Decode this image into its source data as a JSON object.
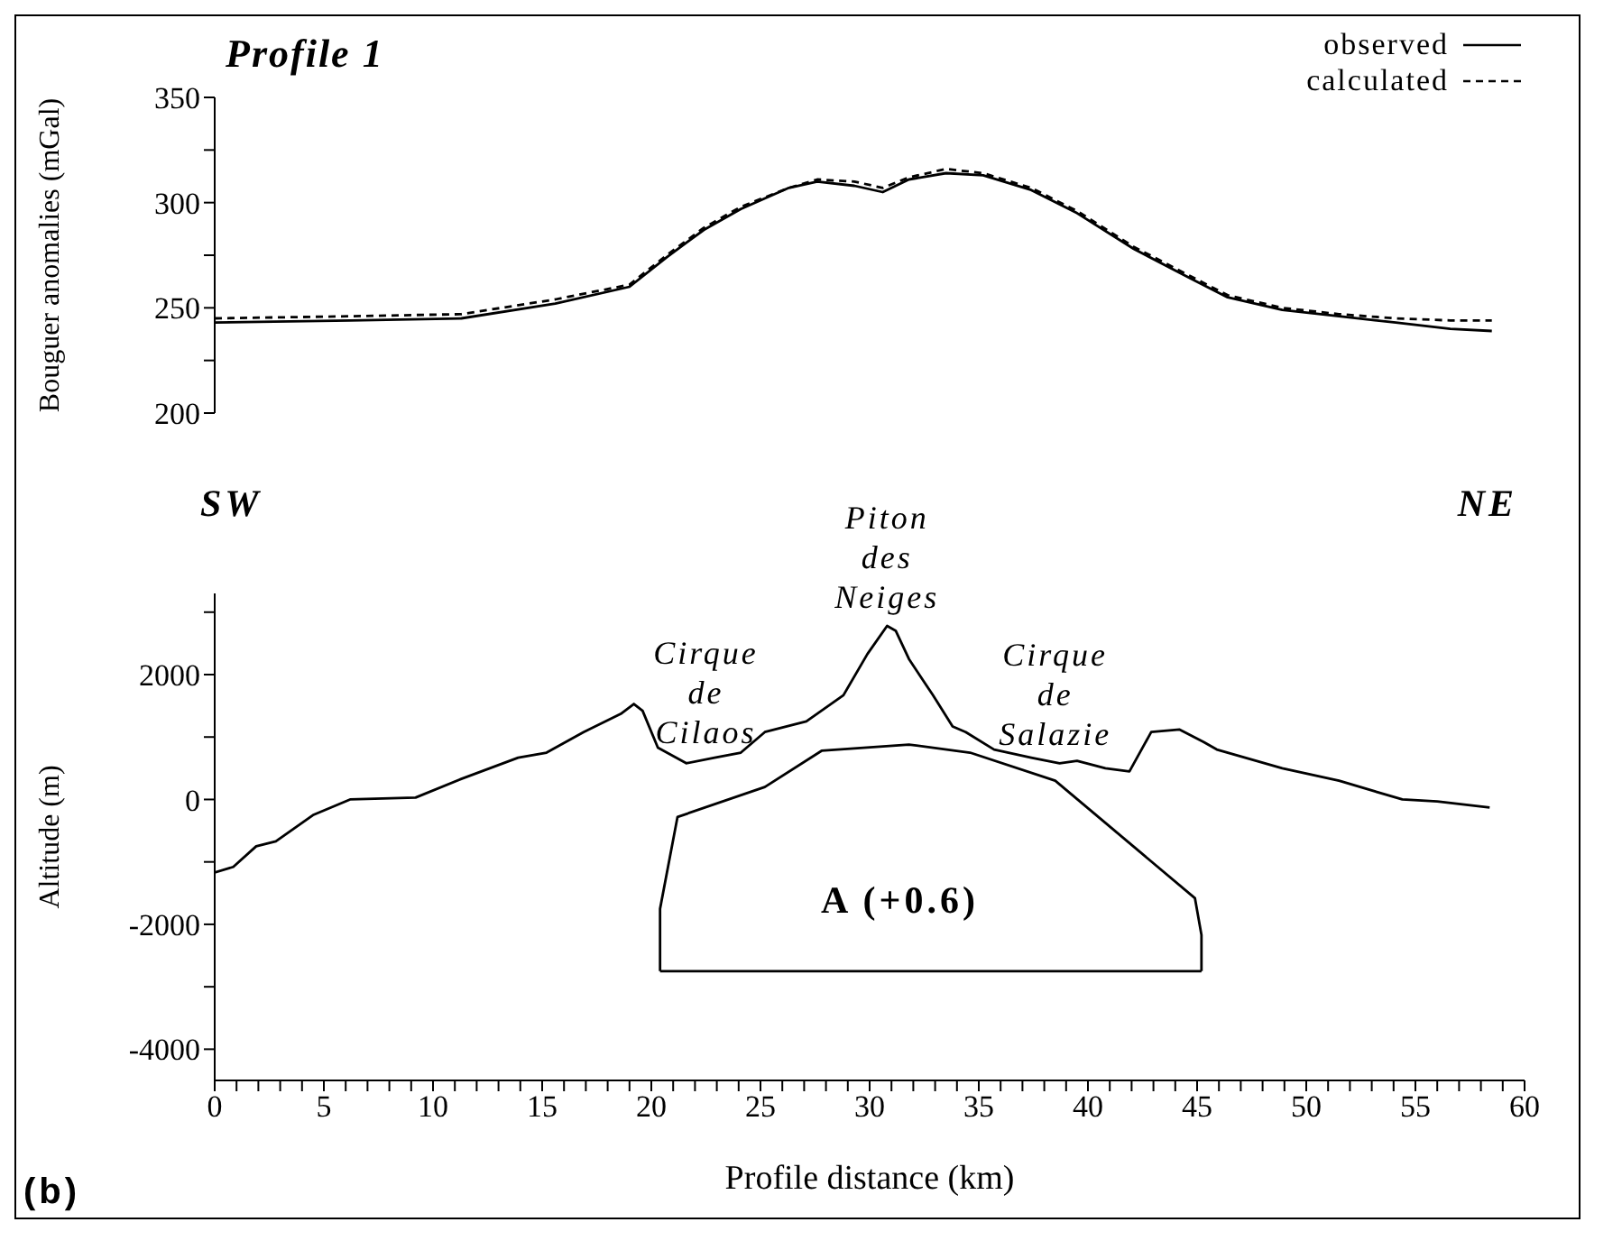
{
  "chart_data": [
    {
      "type": "line",
      "title": "Profile 1",
      "ylabel": "Bouguer anomalies (mGal)",
      "xlim": [
        0,
        60
      ],
      "ylim": [
        200,
        350
      ],
      "yticks": [
        200,
        {
          "value": 225,
          "label": null
        },
        250,
        {
          "value": 275,
          "label": null
        },
        300,
        {
          "value": 325,
          "label": null
        },
        350
      ],
      "tick_labels": "y",
      "legend": "top right",
      "marker": "none",
      "series": [
        {
          "name": "observed",
          "color": "#000000",
          "line_style": "solid",
          "x": [
            0,
            6.2,
            11.3,
            15.6,
            19,
            20.7,
            22.4,
            24.1,
            26.3,
            27.6,
            29.3,
            30.6,
            31.8,
            33.5,
            35.2,
            37.4,
            39.5,
            42.1,
            44.7,
            46.4,
            48.9,
            51.5,
            54.1,
            56.6,
            58.5
          ],
          "values": [
            243,
            244,
            245,
            252,
            260,
            274,
            287,
            297,
            307,
            310,
            308,
            305,
            311,
            314,
            313,
            306,
            295,
            278,
            264,
            255,
            249,
            246,
            243,
            240,
            239
          ]
        },
        {
          "name": "calculated",
          "color": "#000000",
          "line_style": "dashed",
          "x": [
            0,
            6.2,
            11.3,
            15.6,
            19,
            20.7,
            22.4,
            24.1,
            26.3,
            27.6,
            29.3,
            30.6,
            31.8,
            33.5,
            35.2,
            37.4,
            39.5,
            42.1,
            44.7,
            46.4,
            48.9,
            51.5,
            54.1,
            56.6,
            58.5
          ],
          "values": [
            245,
            246,
            247,
            254,
            261,
            275,
            288,
            298,
            307,
            311,
            310,
            307,
            312,
            316,
            314,
            307,
            296,
            279,
            265,
            256,
            250,
            247,
            245,
            244,
            244
          ]
        }
      ]
    },
    {
      "type": "line",
      "xlabel": "Profile distance (km)",
      "ylabel": "Altitude (m)",
      "xlim": [
        0,
        60
      ],
      "ylim": [
        -4500,
        3300
      ],
      "xticks": [
        0,
        {
          "value": 1,
          "label": null
        },
        {
          "value": 2,
          "label": null
        },
        {
          "value": 3,
          "label": null
        },
        {
          "value": 4,
          "label": null
        },
        5,
        {
          "value": 6,
          "label": null
        },
        {
          "value": 7,
          "label": null
        },
        {
          "value": 8,
          "label": null
        },
        {
          "value": 9,
          "label": null
        },
        10,
        {
          "value": 11,
          "label": null
        },
        {
          "value": 12,
          "label": null
        },
        {
          "value": 13,
          "label": null
        },
        {
          "value": 14,
          "label": null
        },
        15,
        {
          "value": 16,
          "label": null
        },
        {
          "value": 17,
          "label": null
        },
        {
          "value": 18,
          "label": null
        },
        {
          "value": 19,
          "label": null
        },
        20,
        {
          "value": 21,
          "label": null
        },
        {
          "value": 22,
          "label": null
        },
        {
          "value": 23,
          "label": null
        },
        {
          "value": 24,
          "label": null
        },
        25,
        {
          "value": 26,
          "label": null
        },
        {
          "value": 27,
          "label": null
        },
        {
          "value": 28,
          "label": null
        },
        {
          "value": 29,
          "label": null
        },
        30,
        {
          "value": 31,
          "label": null
        },
        {
          "value": 32,
          "label": null
        },
        {
          "value": 33,
          "label": null
        },
        {
          "value": 34,
          "label": null
        },
        35,
        {
          "value": 36,
          "label": null
        },
        {
          "value": 37,
          "label": null
        },
        {
          "value": 38,
          "label": null
        },
        {
          "value": 39,
          "label": null
        },
        40,
        {
          "value": 41,
          "label": null
        },
        {
          "value": 42,
          "label": null
        },
        {
          "value": 43,
          "label": null
        },
        {
          "value": 44,
          "label": null
        },
        45,
        {
          "value": 46,
          "label": null
        },
        {
          "value": 47,
          "label": null
        },
        {
          "value": 48,
          "label": null
        },
        {
          "value": 49,
          "label": null
        },
        50,
        {
          "value": 51,
          "label": null
        },
        {
          "value": 52,
          "label": null
        },
        {
          "value": 53,
          "label": null
        },
        {
          "value": 54,
          "label": null
        },
        55,
        {
          "value": 56,
          "label": null
        },
        {
          "value": 57,
          "label": null
        },
        {
          "value": 58,
          "label": null
        },
        {
          "value": 59,
          "label": null
        },
        60
      ],
      "yticks": [
        -4000,
        {
          "value": -3000,
          "label": null
        },
        -2000,
        {
          "value": -1000,
          "label": null
        },
        0,
        {
          "value": 1000,
          "label": null
        },
        2000,
        {
          "value": 3000,
          "label": null
        }
      ],
      "marker": "none",
      "series": [
        {
          "color": "#000000",
          "line_style": "solid",
          "x": [
            0,
            0.85,
            1.9,
            2.8,
            4.5,
            6.2,
            9.2,
            11.3,
            13.9,
            15.2,
            16.9,
            18.6,
            19.2,
            19.6,
            20.3,
            21.6,
            22.9,
            24.1,
            25.2,
            27.1,
            28.8,
            29.9,
            30.8,
            31.2,
            31.8,
            32.9,
            33.8,
            34.4,
            35.7,
            37.4,
            38.7,
            39.5,
            40.8,
            41.9,
            42.9,
            44.2,
            45.3,
            45.9,
            48.9,
            51.5,
            54.4,
            56,
            58.4
          ],
          "values": [
            -1170,
            -1080,
            -750,
            -670,
            -250,
            0,
            30,
            330,
            670,
            750,
            1080,
            1370,
            1530,
            1420,
            830,
            580,
            670,
            750,
            1080,
            1250,
            1670,
            2330,
            2780,
            2700,
            2250,
            1670,
            1170,
            1080,
            800,
            670,
            580,
            620,
            500,
            450,
            1080,
            1120,
            920,
            800,
            500,
            300,
            0,
            -30,
            -130
          ]
        },
        {
          "color": "#000000",
          "line_style": "solid",
          "x": [
            20.4,
            20.4,
            21.2,
            25.2,
            27.8,
            31.8,
            34.6,
            38.5,
            44.9,
            45.2,
            45.2
          ],
          "values": [
            -2750,
            -1750,
            -280,
            200,
            780,
            880,
            750,
            300,
            -1580,
            -2170,
            -2750
          ]
        },
        {
          "color": "#000000",
          "line_style": "solid",
          "x": [
            20.4,
            45.2
          ],
          "values": [
            -2750,
            -2750
          ]
        }
      ],
      "annotations": [
        "SW",
        "NE",
        {
          "text": "Cirque de Cilaos",
          "x": 22.5,
          "y": 620
        },
        {
          "text": "Piton des Neiges",
          "x": 30.8,
          "y": 2780
        },
        {
          "text": "Cirque de Salazie",
          "x": 38.5,
          "y": 580
        },
        "A (+0.6)",
        "(b)"
      ]
    }
  ]
}
